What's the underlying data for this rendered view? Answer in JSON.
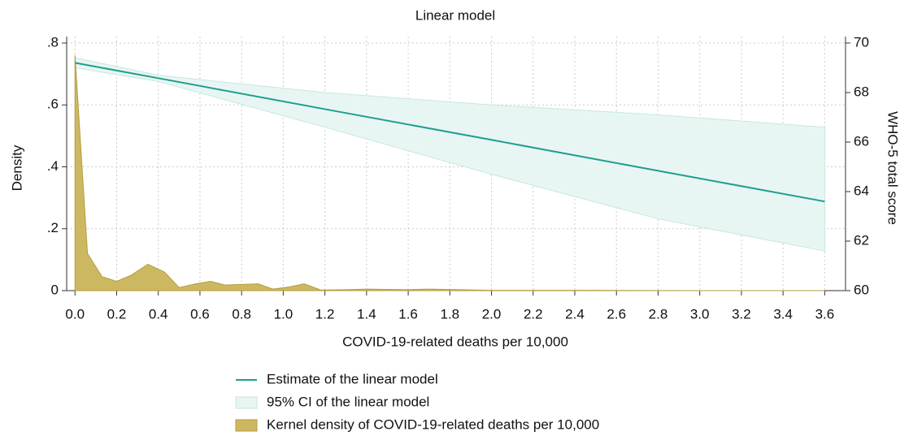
{
  "chart_data": {
    "type": "line",
    "title": "Linear model",
    "xlabel": "COVID-19-related deaths per 10,000",
    "ylabel": "Density",
    "y2label": "WHO-5 total score",
    "xlim": [
      -0.04,
      3.7
    ],
    "xticks": [
      {
        "value": 0,
        "label": "0.0"
      },
      {
        "value": 0.2,
        "label": "0.2"
      },
      {
        "value": 0.4,
        "label": "0.4"
      },
      {
        "value": 0.6,
        "label": "0.6"
      },
      {
        "value": 0.8,
        "label": "0.8"
      },
      {
        "value": 1,
        "label": "1.0"
      },
      {
        "value": 1.2,
        "label": "1.2"
      },
      {
        "value": 1.4,
        "label": "1.4"
      },
      {
        "value": 1.6,
        "label": "1.6"
      },
      {
        "value": 1.8,
        "label": "1.8"
      },
      {
        "value": 2,
        "label": "2.0"
      },
      {
        "value": 2.2,
        "label": "2.2"
      },
      {
        "value": 2.4,
        "label": "2.4"
      },
      {
        "value": 2.6,
        "label": "2.6"
      },
      {
        "value": 2.8,
        "label": "2.8"
      },
      {
        "value": 3,
        "label": "3.0"
      },
      {
        "value": 3.2,
        "label": "3.2"
      },
      {
        "value": 3.4,
        "label": "3.4"
      },
      {
        "value": 3.6,
        "label": "3.6"
      }
    ],
    "ylim": [
      0,
      0.8
    ],
    "yticks": [
      0,
      {
        "value": 0.2,
        "label": ".2"
      },
      {
        "value": 0.4,
        "label": ".4"
      },
      {
        "value": 0.6,
        "label": ".6"
      },
      {
        "value": 0.8,
        "label": ".8"
      }
    ],
    "y2lim": [
      60,
      70
    ],
    "y2ticks": [
      60,
      62,
      64,
      66,
      68,
      70
    ],
    "grid": true,
    "legend": "bottom",
    "x": [
      0,
      0.4,
      1.2,
      2.0,
      2.8,
      3.6
    ],
    "series": [
      {
        "name": "Estimate of the linear model",
        "color": "#1f9e8e",
        "axis": "y2",
        "values": [
          69.2,
          68.58,
          67.33,
          66.09,
          64.84,
          63.6
        ]
      }
    ],
    "band": {
      "name": "95% CI of the linear model",
      "color": "#e8f6f3",
      "stroke": "#c6e7e1",
      "axis": "y2",
      "upper": [
        69.4,
        68.7,
        68.0,
        67.5,
        67.1,
        66.6
      ],
      "lower": [
        69.0,
        68.45,
        66.6,
        64.7,
        62.9,
        61.6
      ]
    },
    "density": {
      "name": "Kernel density of COVID-19-related deaths per 10,000",
      "color": "#cdb862",
      "stroke": "#b59d3c",
      "x": [
        0,
        0.06,
        0.13,
        0.2,
        0.27,
        0.35,
        0.43,
        0.5,
        0.58,
        0.65,
        0.72,
        0.8,
        0.88,
        0.95,
        1.03,
        1.1,
        1.18,
        1.3,
        1.4,
        1.6,
        1.7,
        1.85,
        2.0,
        2.5,
        3.0,
        3.6
      ],
      "values": [
        0.76,
        0.12,
        0.045,
        0.03,
        0.05,
        0.085,
        0.06,
        0.01,
        0.022,
        0.03,
        0.018,
        0.02,
        0.022,
        0.005,
        0.012,
        0.022,
        0.002,
        0.003,
        0.005,
        0.003,
        0.005,
        0.003,
        0.001,
        0.001,
        0,
        0
      ]
    }
  }
}
